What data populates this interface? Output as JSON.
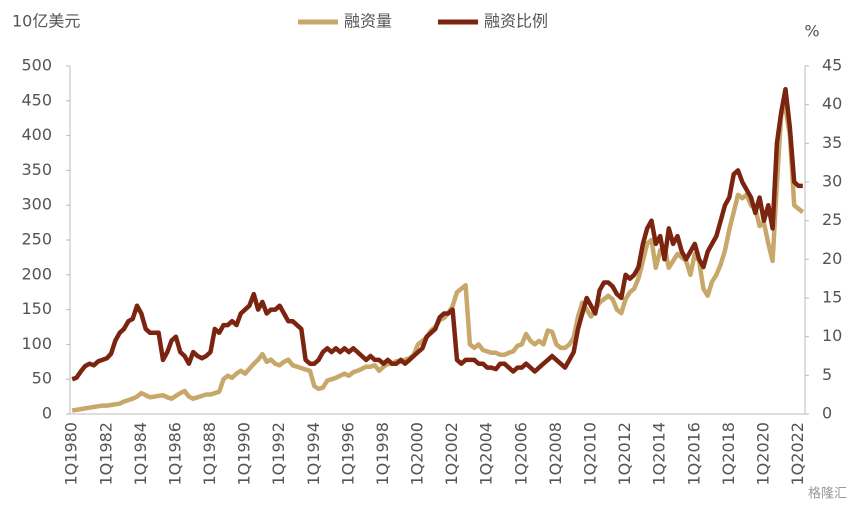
{
  "chart_data": {
    "type": "line",
    "y_label": "10亿美元",
    "y2_label": "%",
    "watermark": "格隆汇",
    "categories": [
      "1Q1980",
      null,
      null,
      null,
      null,
      null,
      null,
      null,
      "1Q1982",
      null,
      null,
      null,
      null,
      null,
      null,
      null,
      "1Q1984",
      null,
      null,
      null,
      null,
      null,
      null,
      null,
      "1Q1986",
      null,
      null,
      null,
      null,
      null,
      null,
      null,
      "1Q1988",
      null,
      null,
      null,
      null,
      null,
      null,
      null,
      "1Q1990",
      null,
      null,
      null,
      null,
      null,
      null,
      null,
      "1Q1992",
      null,
      null,
      null,
      null,
      null,
      null,
      null,
      "1Q1994",
      null,
      null,
      null,
      null,
      null,
      null,
      null,
      "1Q1996",
      null,
      null,
      null,
      null,
      null,
      null,
      null,
      "1Q1998",
      null,
      null,
      null,
      null,
      null,
      null,
      null,
      "1Q2000",
      null,
      null,
      null,
      null,
      null,
      null,
      null,
      "1Q2002",
      null,
      null,
      null,
      null,
      null,
      null,
      null,
      "1Q2004",
      null,
      null,
      null,
      null,
      null,
      null,
      null,
      "1Q2006",
      null,
      null,
      null,
      null,
      null,
      null,
      null,
      "1Q2008",
      null,
      null,
      null,
      null,
      null,
      null,
      null,
      "1Q2010",
      null,
      null,
      null,
      null,
      null,
      null,
      null,
      "1Q2012",
      null,
      null,
      null,
      null,
      null,
      null,
      null,
      "1Q2014",
      null,
      null,
      null,
      null,
      null,
      null,
      null,
      "1Q2016",
      null,
      null,
      null,
      null,
      null,
      null,
      null,
      "1Q2018",
      null,
      null,
      null,
      null,
      null,
      null,
      null,
      "1Q2020",
      null,
      null,
      null,
      null,
      null,
      null,
      null,
      "1Q2022",
      null
    ],
    "series": [
      {
        "name": "融资量",
        "color": "#c8a86a",
        "values": [
          5,
          6,
          7,
          8,
          9,
          10,
          11,
          12,
          12,
          13,
          14,
          15,
          18,
          20,
          22,
          25,
          30,
          27,
          24,
          25,
          26,
          27,
          24,
          22,
          26,
          30,
          33,
          25,
          22,
          24,
          26,
          28,
          28,
          30,
          32,
          50,
          55,
          52,
          58,
          62,
          58,
          65,
          72,
          78,
          86,
          75,
          78,
          72,
          70,
          75,
          78,
          70,
          68,
          66,
          64,
          62,
          40,
          36,
          38,
          48,
          50,
          52,
          55,
          58,
          55,
          60,
          62,
          65,
          68,
          68,
          70,
          62,
          68,
          72,
          72,
          76,
          75,
          78,
          80,
          85,
          100,
          105,
          110,
          120,
          125,
          135,
          138,
          145,
          155,
          175,
          180,
          185,
          100,
          95,
          100,
          92,
          90,
          88,
          88,
          85,
          85,
          88,
          90,
          98,
          100,
          115,
          105,
          100,
          105,
          100,
          120,
          118,
          100,
          95,
          95,
          100,
          110,
          140,
          160,
          150,
          140,
          150,
          160,
          165,
          170,
          165,
          150,
          145,
          165,
          175,
          180,
          195,
          220,
          245,
          250,
          210,
          235,
          240,
          210,
          220,
          230,
          225,
          220,
          200,
          230,
          220,
          180,
          170,
          190,
          200,
          215,
          235,
          265,
          290,
          315,
          310,
          315,
          300,
          295,
          270,
          275,
          245,
          220,
          330,
          430,
          440,
          400,
          300,
          295,
          290
        ]
      },
      {
        "name": "融资比例",
        "color": "#7b2410",
        "axis": "y2",
        "values": [
          4.5,
          4.7,
          5.5,
          6.2,
          6.5,
          6.3,
          6.8,
          7,
          7.2,
          7.8,
          9.5,
          10.5,
          11,
          12,
          12.3,
          14,
          13,
          11,
          10.5,
          10.5,
          10.5,
          7,
          8,
          9.5,
          10,
          8,
          7.5,
          6.5,
          8,
          7.5,
          7.2,
          7.5,
          8,
          11,
          10.5,
          11.5,
          11.5,
          12,
          11.5,
          13,
          13.5,
          14,
          15.5,
          13.5,
          14.5,
          13,
          13.5,
          13.5,
          14,
          13,
          12,
          12,
          11.5,
          11,
          7,
          6.5,
          6.5,
          7,
          8,
          8.5,
          8,
          8.5,
          8,
          8.5,
          8,
          8.5,
          8,
          7.5,
          7,
          7.5,
          7,
          7,
          6.5,
          7,
          6.5,
          6.5,
          7,
          6.5,
          7,
          7.5,
          8,
          8.5,
          10,
          10.5,
          11,
          12.5,
          13,
          13,
          13.5,
          7,
          6.5,
          7,
          7,
          7,
          6.5,
          6.5,
          6,
          6,
          5.8,
          6.5,
          6.5,
          6,
          5.5,
          6,
          6,
          6.5,
          6,
          5.5,
          6,
          6.5,
          7,
          7.5,
          7,
          6.5,
          6,
          7,
          8,
          11,
          13,
          15,
          14,
          13,
          16,
          17,
          17,
          16.5,
          15.5,
          15,
          18,
          17.5,
          18,
          19,
          22,
          24,
          25,
          22,
          23,
          20,
          24,
          22,
          23,
          21,
          20,
          21,
          22,
          20,
          19,
          21,
          22,
          23,
          25,
          27,
          28,
          31,
          31.5,
          30,
          29,
          28,
          26,
          28,
          25,
          27,
          24,
          35,
          39,
          42,
          37,
          30,
          29.5,
          29.5
        ]
      }
    ],
    "ylim": [
      0,
      500
    ],
    "yticks": [
      0,
      50,
      100,
      150,
      200,
      250,
      300,
      350,
      400,
      450,
      500
    ],
    "y2lim": [
      0,
      45
    ],
    "y2ticks": [
      0,
      5,
      10,
      15,
      20,
      25,
      30,
      35,
      40,
      45
    ],
    "legend": "top"
  }
}
